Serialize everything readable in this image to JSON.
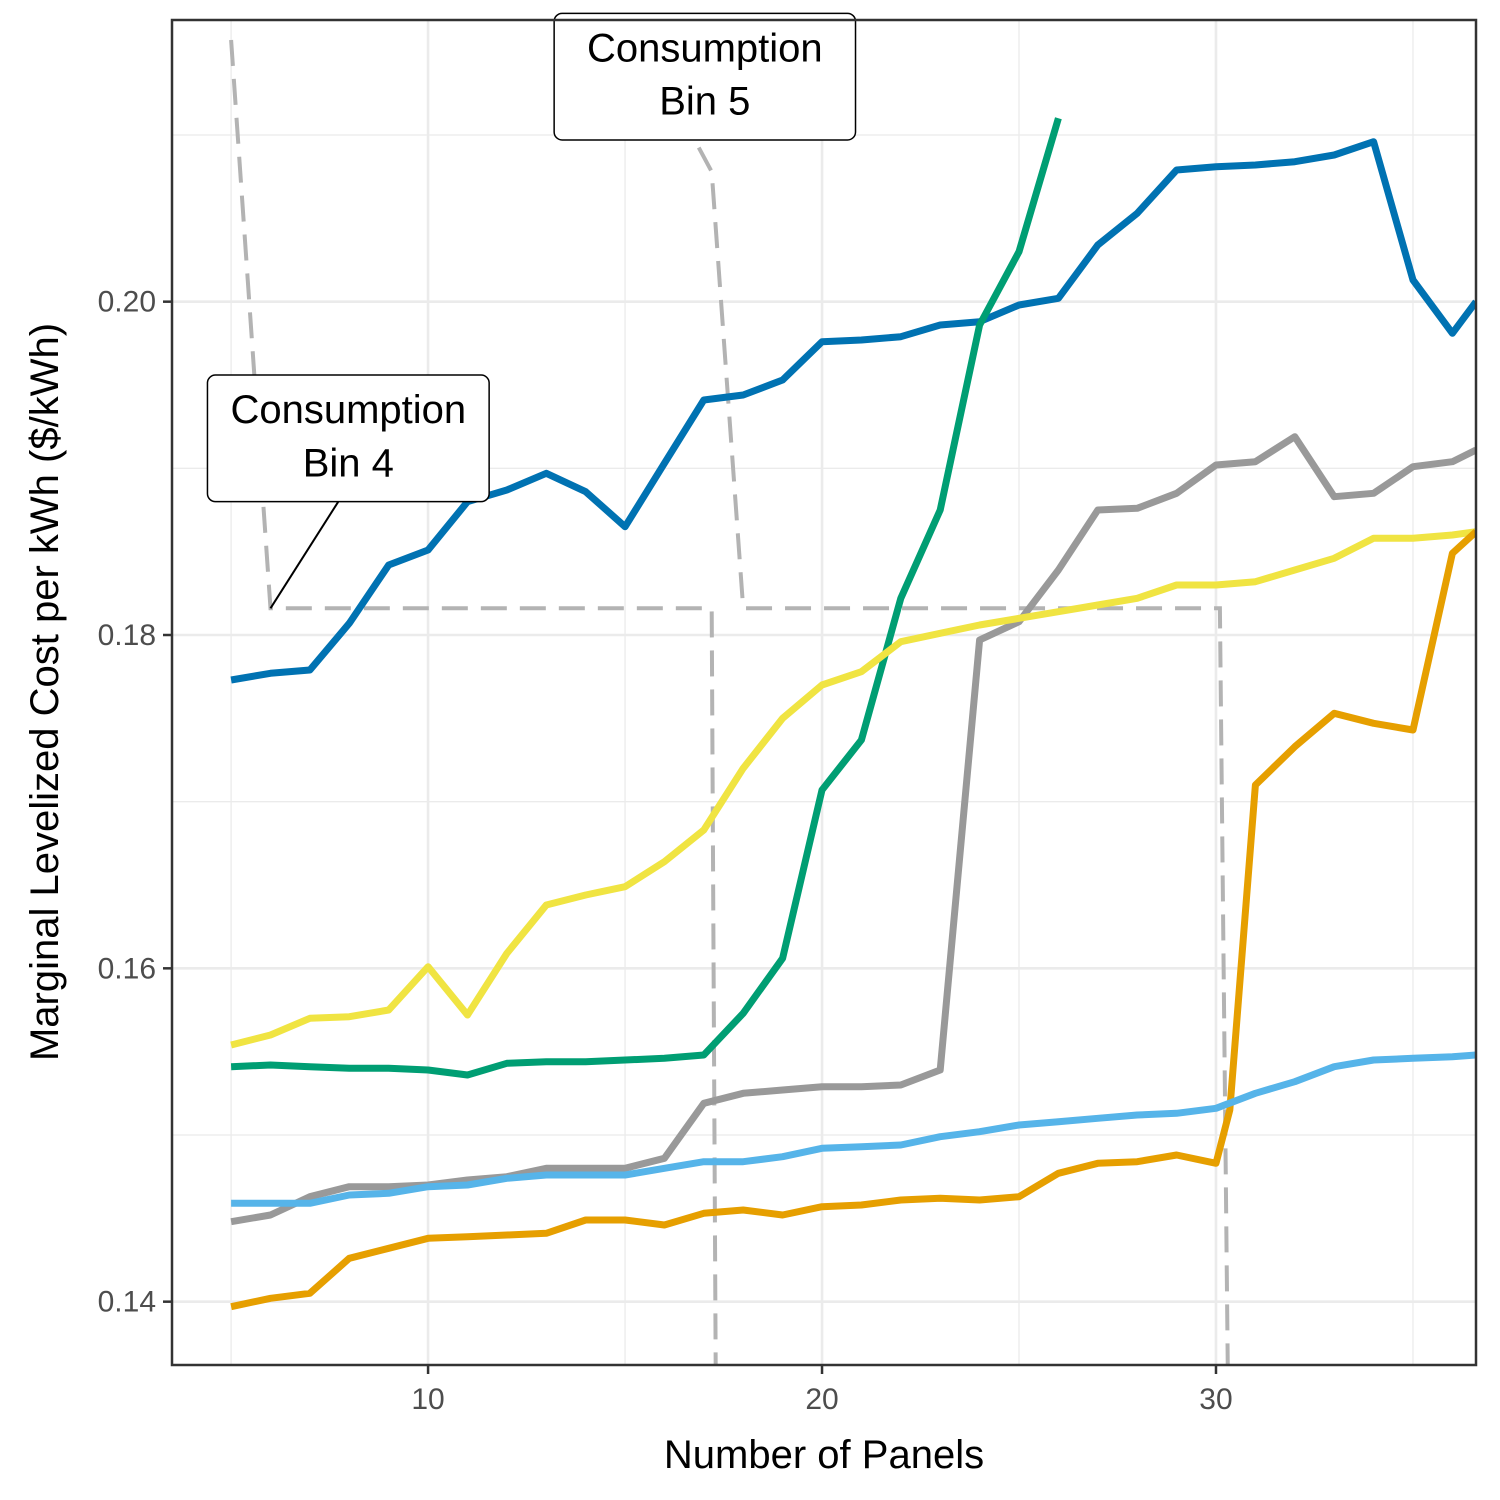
{
  "chart_data": {
    "type": "line",
    "xlabel": "Number of Panels",
    "ylabel": "Marginal Levelized Cost per kWh ($/kWh)",
    "xlim": [
      3.5,
      36.6
    ],
    "ylim": [
      0.1362,
      0.2169
    ],
    "x_ticks": [
      10,
      20,
      30
    ],
    "x_tick_labels": [
      "10",
      "20",
      "30"
    ],
    "y_ticks": [
      0.14,
      0.16,
      0.18,
      0.2
    ],
    "y_tick_labels": [
      "0.14",
      "0.16",
      "0.18",
      "0.20"
    ],
    "grid": true,
    "series": [
      {
        "color": "#0072B2",
        "points": [
          [
            5,
            0.1773
          ],
          [
            6,
            0.1777
          ],
          [
            7,
            0.1779
          ],
          [
            8,
            0.1807
          ],
          [
            9,
            0.1842
          ],
          [
            10,
            0.1851
          ],
          [
            11,
            0.188
          ],
          [
            12,
            0.1887
          ],
          [
            13,
            0.1897
          ],
          [
            14,
            0.1886
          ],
          [
            15,
            0.1865
          ],
          [
            16,
            0.1903
          ],
          [
            17,
            0.1941
          ],
          [
            18,
            0.1944
          ],
          [
            19,
            0.1953
          ],
          [
            20,
            0.1976
          ],
          [
            21,
            0.1977
          ],
          [
            22,
            0.1979
          ],
          [
            23,
            0.1986
          ],
          [
            24,
            0.1988
          ],
          [
            25,
            0.1998
          ],
          [
            26,
            0.2002
          ],
          [
            27,
            0.2034
          ],
          [
            28,
            0.2053
          ],
          [
            29,
            0.2079
          ],
          [
            30,
            0.2081
          ],
          [
            31,
            0.2082
          ],
          [
            32,
            0.2084
          ],
          [
            33,
            0.2088
          ],
          [
            34,
            0.2096
          ],
          [
            35,
            0.2013
          ],
          [
            36,
            0.1981
          ],
          [
            36.6,
            0.2
          ]
        ]
      },
      {
        "color": "#009E73",
        "points": [
          [
            5,
            0.1541
          ],
          [
            6,
            0.1542
          ],
          [
            7,
            0.1541
          ],
          [
            8,
            0.154
          ],
          [
            9,
            0.154
          ],
          [
            10,
            0.1539
          ],
          [
            11,
            0.1536
          ],
          [
            12,
            0.1543
          ],
          [
            13,
            0.1544
          ],
          [
            14,
            0.1544
          ],
          [
            15,
            0.1545
          ],
          [
            16,
            0.1546
          ],
          [
            17,
            0.1548
          ],
          [
            18,
            0.1573
          ],
          [
            19,
            0.1606
          ],
          [
            20,
            0.1707
          ],
          [
            21,
            0.1737
          ],
          [
            22,
            0.1822
          ],
          [
            23,
            0.1875
          ],
          [
            24,
            0.1986
          ],
          [
            25,
            0.203
          ],
          [
            26,
            0.211
          ]
        ]
      },
      {
        "color": "#999999",
        "points": [
          [
            5,
            0.1448
          ],
          [
            6,
            0.1452
          ],
          [
            7,
            0.1463
          ],
          [
            8,
            0.1469
          ],
          [
            9,
            0.1469
          ],
          [
            10,
            0.147
          ],
          [
            11,
            0.1473
          ],
          [
            12,
            0.1475
          ],
          [
            13,
            0.148
          ],
          [
            14,
            0.148
          ],
          [
            15,
            0.148
          ],
          [
            16,
            0.1486
          ],
          [
            17,
            0.1519
          ],
          [
            18,
            0.1525
          ],
          [
            19,
            0.1527
          ],
          [
            20,
            0.1529
          ],
          [
            21,
            0.1529
          ],
          [
            22,
            0.153
          ],
          [
            23,
            0.1539
          ],
          [
            24,
            0.1797
          ],
          [
            25,
            0.1808
          ],
          [
            26,
            0.1839
          ],
          [
            27,
            0.1875
          ],
          [
            28,
            0.1876
          ],
          [
            29,
            0.1885
          ],
          [
            30,
            0.1902
          ],
          [
            31,
            0.1904
          ],
          [
            32,
            0.1919
          ],
          [
            33,
            0.1883
          ],
          [
            34,
            0.1885
          ],
          [
            35,
            0.1901
          ],
          [
            36,
            0.1904
          ],
          [
            36.6,
            0.1911
          ]
        ]
      },
      {
        "color": "#F0E442",
        "points": [
          [
            5,
            0.1554
          ],
          [
            6,
            0.156
          ],
          [
            7,
            0.157
          ],
          [
            8,
            0.1571
          ],
          [
            9,
            0.1575
          ],
          [
            10,
            0.1601
          ],
          [
            11,
            0.1572
          ],
          [
            12,
            0.1609
          ],
          [
            13,
            0.1638
          ],
          [
            14,
            0.1644
          ],
          [
            15,
            0.1649
          ],
          [
            16,
            0.1664
          ],
          [
            17,
            0.1683
          ],
          [
            18,
            0.172
          ],
          [
            19,
            0.175
          ],
          [
            20,
            0.177
          ],
          [
            21,
            0.1778
          ],
          [
            22,
            0.1796
          ],
          [
            23,
            0.1801
          ],
          [
            24,
            0.1806
          ],
          [
            25,
            0.181
          ],
          [
            26,
            0.1814
          ],
          [
            27,
            0.1818
          ],
          [
            28,
            0.1822
          ],
          [
            29,
            0.183
          ],
          [
            30,
            0.183
          ],
          [
            31,
            0.1832
          ],
          [
            32,
            0.1839
          ],
          [
            33,
            0.1846
          ],
          [
            34,
            0.1858
          ],
          [
            35,
            0.1858
          ],
          [
            36,
            0.186
          ],
          [
            36.6,
            0.1862
          ]
        ]
      },
      {
        "color": "#E69F00",
        "points": [
          [
            5,
            0.1397
          ],
          [
            6,
            0.1402
          ],
          [
            7,
            0.1405
          ],
          [
            8,
            0.1426
          ],
          [
            9,
            0.1432
          ],
          [
            10,
            0.1438
          ],
          [
            11,
            0.1439
          ],
          [
            12,
            0.144
          ],
          [
            13,
            0.1441
          ],
          [
            14,
            0.1449
          ],
          [
            15,
            0.1449
          ],
          [
            16,
            0.1446
          ],
          [
            17,
            0.1453
          ],
          [
            18,
            0.1455
          ],
          [
            19,
            0.1452
          ],
          [
            20,
            0.1457
          ],
          [
            21,
            0.1458
          ],
          [
            22,
            0.1461
          ],
          [
            23,
            0.1462
          ],
          [
            24,
            0.1461
          ],
          [
            25,
            0.1463
          ],
          [
            26,
            0.1477
          ],
          [
            27,
            0.1483
          ],
          [
            28,
            0.1484
          ],
          [
            29,
            0.1488
          ],
          [
            30,
            0.1483
          ],
          [
            30.35,
            0.1515
          ],
          [
            31,
            0.171
          ],
          [
            32,
            0.1733
          ],
          [
            33,
            0.1753
          ],
          [
            34,
            0.1747
          ],
          [
            35,
            0.1743
          ],
          [
            36,
            0.1849
          ],
          [
            36.6,
            0.1862
          ]
        ]
      },
      {
        "color": "#56B4E9",
        "points": [
          [
            5,
            0.1459
          ],
          [
            6,
            0.1459
          ],
          [
            7,
            0.1459
          ],
          [
            8,
            0.1464
          ],
          [
            9,
            0.1465
          ],
          [
            10,
            0.1469
          ],
          [
            11,
            0.147
          ],
          [
            12,
            0.1474
          ],
          [
            13,
            0.1476
          ],
          [
            14,
            0.1476
          ],
          [
            15,
            0.1476
          ],
          [
            16,
            0.148
          ],
          [
            17,
            0.1484
          ],
          [
            18,
            0.1484
          ],
          [
            19,
            0.1487
          ],
          [
            20,
            0.1492
          ],
          [
            21,
            0.1493
          ],
          [
            22,
            0.1494
          ],
          [
            23,
            0.1499
          ],
          [
            24,
            0.1502
          ],
          [
            25,
            0.1506
          ],
          [
            26,
            0.1508
          ],
          [
            27,
            0.151
          ],
          [
            28,
            0.1512
          ],
          [
            29,
            0.1513
          ],
          [
            30,
            0.1516
          ],
          [
            31,
            0.1525
          ],
          [
            32,
            0.1532
          ],
          [
            33,
            0.1541
          ],
          [
            34,
            0.1545
          ],
          [
            35,
            0.1546
          ],
          [
            36,
            0.1547
          ],
          [
            36.6,
            0.1548
          ]
        ]
      }
    ],
    "reference_lines": [
      {
        "color": "#b3b3b3",
        "points": [
          [
            5,
            0.2157
          ],
          [
            6,
            0.1816
          ],
          [
            17.2,
            0.1816
          ],
          [
            17.3,
            0.1359
          ]
        ]
      },
      {
        "color": "#b3b3b3",
        "points": [
          [
            15.0,
            0.2175
          ],
          [
            17.2,
            0.2078
          ],
          [
            18.0,
            0.1816
          ],
          [
            30.1,
            0.1816
          ],
          [
            30.3,
            0.1359
          ]
        ]
      }
    ],
    "annotations": [
      {
        "line1": "Consumption",
        "line2": "Bin 4",
        "anchor": [
          6,
          0.1816
        ],
        "box_x_range": [
          4.4,
          11.55
        ],
        "box_y_range": [
          0.188,
          0.1956
        ]
      },
      {
        "line1": "Consumption",
        "line2": "Bin 5",
        "anchor": null,
        "box_x_range": [
          13.2,
          20.85
        ],
        "box_y_range": [
          0.2097,
          0.2173
        ]
      }
    ]
  }
}
